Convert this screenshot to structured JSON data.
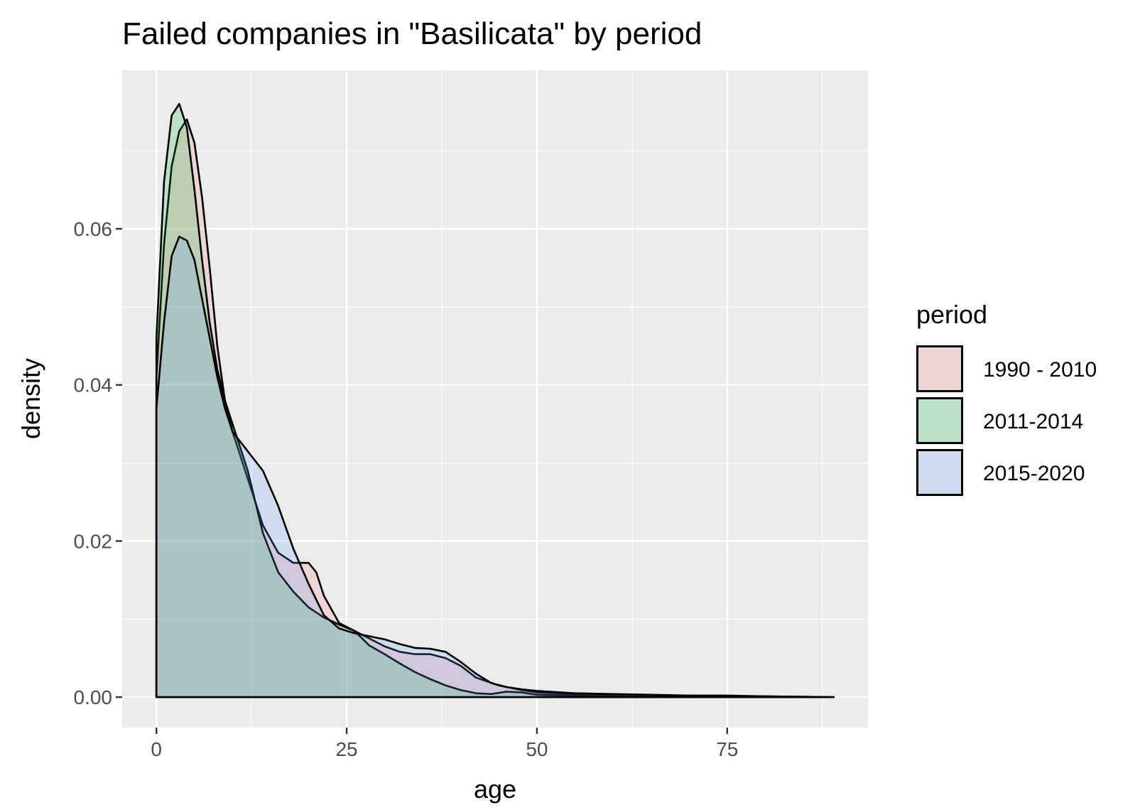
{
  "chart_data": {
    "type": "area",
    "title": "Failed companies in \"Basilicata\" by period",
    "xlabel": "age",
    "ylabel": "density",
    "xlim": [
      -4.5,
      93.5
    ],
    "ylim": [
      -0.0039,
      0.0803
    ],
    "x_ticks": [
      {
        "value": 0,
        "label": "0"
      },
      {
        "value": 25,
        "label": "25"
      },
      {
        "value": 50,
        "label": "50"
      },
      {
        "value": 75,
        "label": "75"
      }
    ],
    "y_ticks": [
      {
        "value": 0,
        "label": "0.00"
      },
      {
        "value": 0.02,
        "label": "0.02"
      },
      {
        "value": 0.04,
        "label": "0.04"
      },
      {
        "value": 0.06,
        "label": "0.06"
      }
    ],
    "grid": true,
    "background": "#ebebeb",
    "legend": {
      "title": "period",
      "position": "right"
    },
    "fill_opacity": 0.2,
    "series": [
      {
        "name": "1990 - 2010",
        "color": "#f8766d",
        "points": [
          [
            0,
            0.041
          ],
          [
            1,
            0.058
          ],
          [
            2,
            0.068
          ],
          [
            3,
            0.0725
          ],
          [
            4,
            0.074
          ],
          [
            5,
            0.071
          ],
          [
            6,
            0.064
          ],
          [
            7,
            0.055
          ],
          [
            8,
            0.045
          ],
          [
            9,
            0.038
          ],
          [
            10,
            0.034
          ],
          [
            12,
            0.028
          ],
          [
            14,
            0.022
          ],
          [
            16,
            0.0185
          ],
          [
            18,
            0.0172
          ],
          [
            20,
            0.0172
          ],
          [
            21,
            0.016
          ],
          [
            22,
            0.013
          ],
          [
            24,
            0.0095
          ],
          [
            26,
            0.0085
          ],
          [
            28,
            0.0075
          ],
          [
            30,
            0.0065
          ],
          [
            32,
            0.0058
          ],
          [
            34,
            0.0055
          ],
          [
            36,
            0.0055
          ],
          [
            38,
            0.005
          ],
          [
            40,
            0.004
          ],
          [
            42,
            0.0025
          ],
          [
            45,
            0.0015
          ],
          [
            48,
            0.0009
          ],
          [
            50,
            0.0006
          ],
          [
            55,
            0.0004
          ],
          [
            60,
            0.0003
          ],
          [
            65,
            0.0002
          ],
          [
            70,
            0.0002
          ],
          [
            75,
            0.0001
          ],
          [
            80,
            0.0001
          ],
          [
            89,
            0.0
          ]
        ]
      },
      {
        "name": "2011-2014",
        "color": "#00ba38",
        "points": [
          [
            0,
            0.046
          ],
          [
            1,
            0.066
          ],
          [
            2,
            0.0745
          ],
          [
            3,
            0.076
          ],
          [
            4,
            0.073
          ],
          [
            5,
            0.065
          ],
          [
            6,
            0.056
          ],
          [
            7,
            0.048
          ],
          [
            8,
            0.042
          ],
          [
            9,
            0.038
          ],
          [
            10,
            0.035
          ],
          [
            12,
            0.029
          ],
          [
            14,
            0.021
          ],
          [
            16,
            0.016
          ],
          [
            18,
            0.0135
          ],
          [
            20,
            0.0115
          ],
          [
            22,
            0.0102
          ],
          [
            24,
            0.0093
          ],
          [
            26,
            0.0085
          ],
          [
            28,
            0.0066
          ],
          [
            30,
            0.0055
          ],
          [
            32,
            0.0043
          ],
          [
            34,
            0.0032
          ],
          [
            36,
            0.0023
          ],
          [
            38,
            0.0015
          ],
          [
            40,
            0.0009
          ],
          [
            42,
            0.0005
          ],
          [
            44,
            0.0004
          ],
          [
            46,
            0.0007
          ],
          [
            48,
            0.0006
          ],
          [
            50,
            0.0003
          ],
          [
            55,
            0.0002
          ],
          [
            60,
            0.0002
          ],
          [
            70,
            0.0001
          ],
          [
            80,
            0.0
          ],
          [
            89,
            0.0
          ]
        ]
      },
      {
        "name": "2015-2020",
        "color": "#619cff",
        "points": [
          [
            0,
            0.037
          ],
          [
            1,
            0.048
          ],
          [
            2,
            0.0565
          ],
          [
            3,
            0.059
          ],
          [
            4,
            0.0585
          ],
          [
            5,
            0.056
          ],
          [
            6,
            0.051
          ],
          [
            7,
            0.046
          ],
          [
            8,
            0.041
          ],
          [
            9,
            0.037
          ],
          [
            10,
            0.034
          ],
          [
            12,
            0.0315
          ],
          [
            14,
            0.029
          ],
          [
            16,
            0.0245
          ],
          [
            18,
            0.019
          ],
          [
            20,
            0.0145
          ],
          [
            22,
            0.0105
          ],
          [
            24,
            0.0088
          ],
          [
            26,
            0.0082
          ],
          [
            28,
            0.0078
          ],
          [
            30,
            0.0074
          ],
          [
            32,
            0.0068
          ],
          [
            34,
            0.0063
          ],
          [
            36,
            0.0062
          ],
          [
            38,
            0.0058
          ],
          [
            40,
            0.0045
          ],
          [
            42,
            0.003
          ],
          [
            44,
            0.0018
          ],
          [
            46,
            0.0013
          ],
          [
            48,
            0.001
          ],
          [
            50,
            0.0008
          ],
          [
            55,
            0.0005
          ],
          [
            60,
            0.0004
          ],
          [
            65,
            0.0003
          ],
          [
            70,
            0.0002
          ],
          [
            75,
            0.0002
          ],
          [
            80,
            0.0001
          ],
          [
            89,
            0.0
          ]
        ]
      }
    ]
  }
}
